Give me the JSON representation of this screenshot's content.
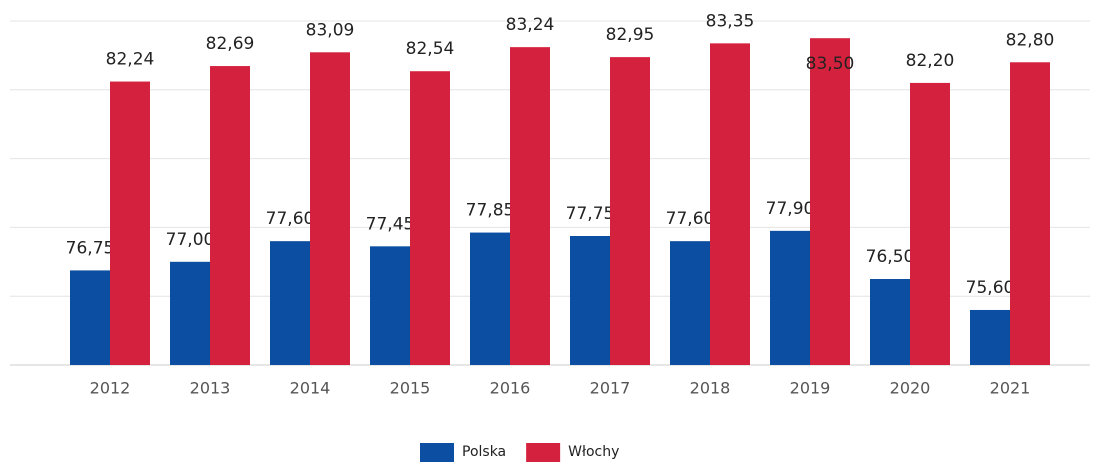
{
  "chart_data": {
    "type": "bar",
    "categories": [
      "2012",
      "2013",
      "2014",
      "2015",
      "2016",
      "2017",
      "2018",
      "2019",
      "2020",
      "2021"
    ],
    "series": [
      {
        "name": "Polska",
        "color": "#0b4ea2",
        "values": [
          76.75,
          77.0,
          77.6,
          77.45,
          77.85,
          77.75,
          77.6,
          77.9,
          76.5,
          75.6
        ],
        "value_labels": [
          "76,75",
          "77,00",
          "77,60",
          "77,45",
          "77,85",
          "77,75",
          "77,60",
          "77,90",
          "76,50",
          "75,60"
        ]
      },
      {
        "name": "Włochy",
        "color": "#d4213d",
        "values": [
          82.24,
          82.69,
          83.09,
          82.54,
          83.24,
          82.95,
          83.35,
          83.5,
          82.2,
          82.8
        ],
        "value_labels": [
          "82,24",
          "82,69",
          "83,09",
          "82,54",
          "83,24",
          "82,95",
          "83,35",
          "83,50",
          "82,20",
          "82,80"
        ]
      }
    ],
    "ylim": [
      74,
      84
    ],
    "yticks": [
      74,
      76,
      78,
      80,
      82,
      84
    ],
    "grid": true,
    "legend": "bottom"
  }
}
